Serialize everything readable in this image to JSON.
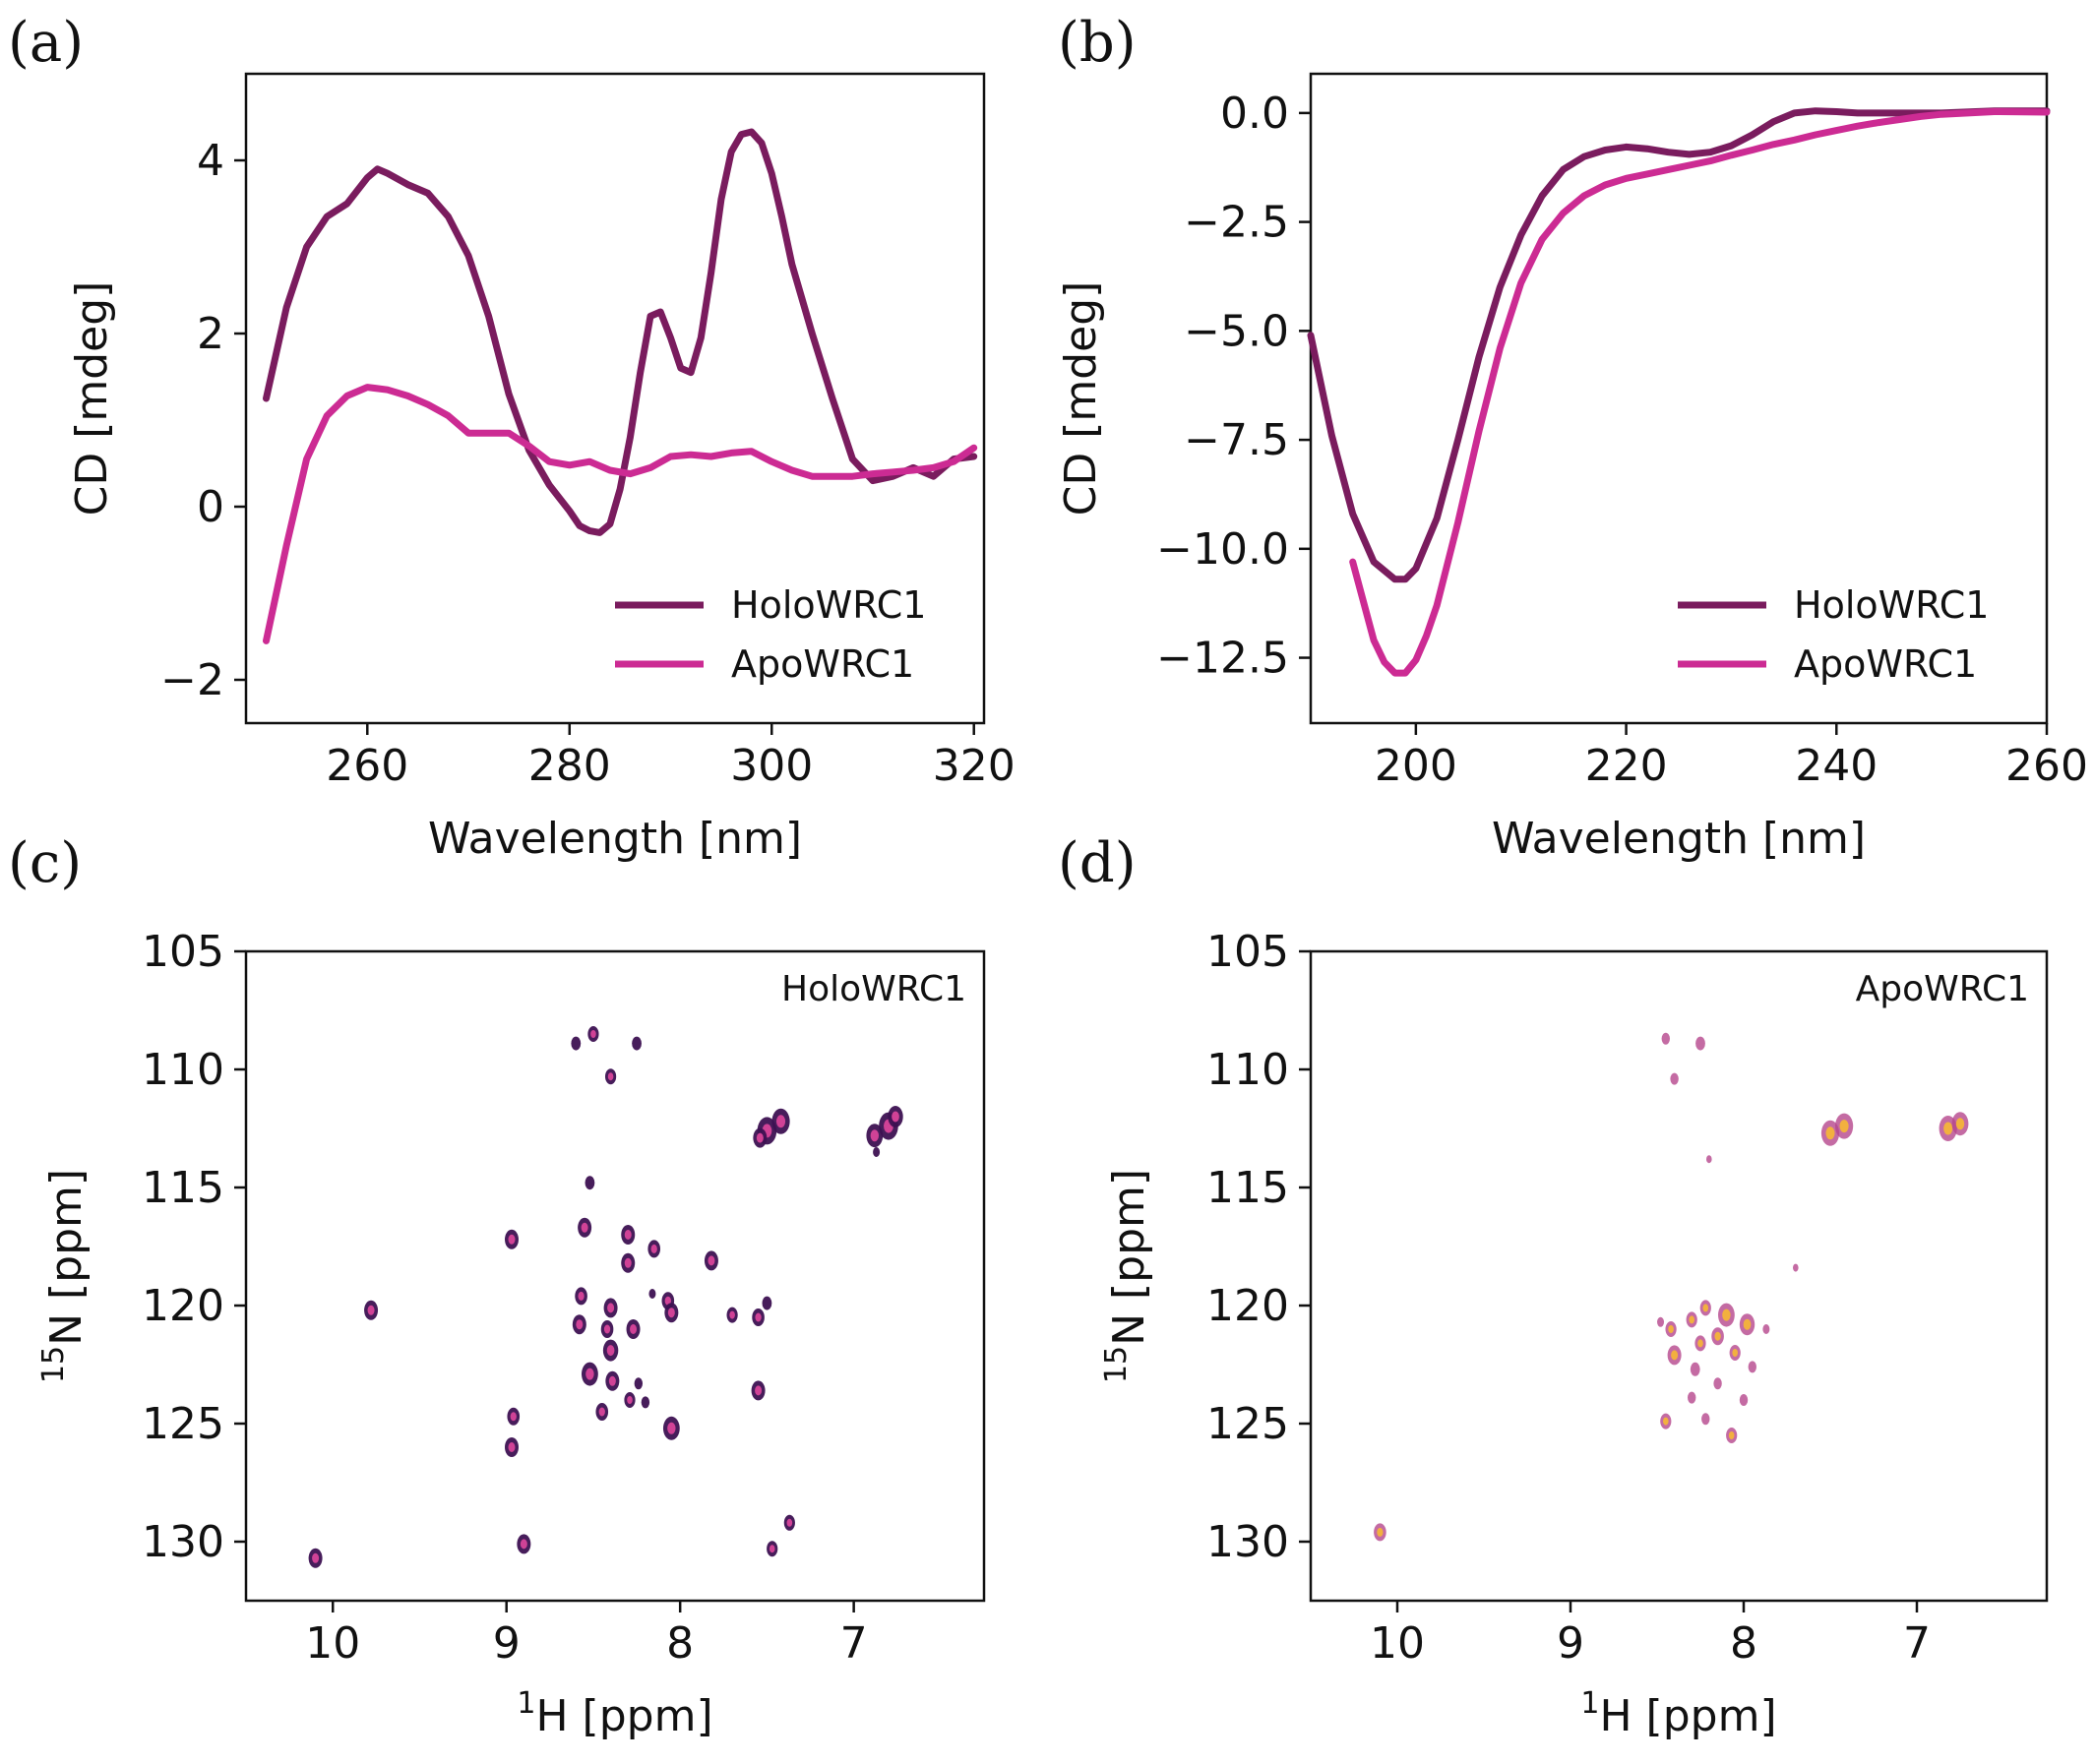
{
  "colors": {
    "holo": "#7a1c5e",
    "apo": "#cc2b93",
    "peak_edge_holo": "#3d1152",
    "peak_edge_apo": "#b5468c",
    "peak_core_holo": "#d8449a",
    "peak_core_apo": "#f4b43a"
  },
  "chart_data": [
    {
      "panel": "(a)",
      "type": "line",
      "xlabel": "Wavelength [nm]",
      "ylabel": "CD [mdeg]",
      "xlim": [
        248,
        321
      ],
      "ylim": [
        -2.5,
        5.0
      ],
      "xticks": [
        260,
        280,
        300,
        320
      ],
      "yticks": [
        -2,
        0,
        2,
        4
      ],
      "xtick_labels": [
        "260",
        "280",
        "300",
        "320"
      ],
      "ytick_labels": [
        "−2",
        "0",
        "2",
        "4"
      ],
      "legend": "lower-right",
      "series": [
        {
          "name": "HoloWRC1",
          "x": [
            250,
            252,
            254,
            256,
            258,
            260,
            261,
            262,
            264,
            266,
            268,
            270,
            272,
            274,
            276,
            278,
            280,
            281,
            282,
            283,
            284,
            285,
            286,
            287,
            288,
            289,
            290,
            291,
            292,
            293,
            294,
            295,
            296,
            297,
            298,
            299,
            300,
            301,
            302,
            304,
            306,
            308,
            310,
            312,
            314,
            316,
            318,
            320
          ],
          "y": [
            1.25,
            2.3,
            3.0,
            3.35,
            3.5,
            3.8,
            3.9,
            3.85,
            3.72,
            3.62,
            3.35,
            2.9,
            2.2,
            1.3,
            0.65,
            0.25,
            -0.05,
            -0.22,
            -0.28,
            -0.3,
            -0.2,
            0.2,
            0.8,
            1.55,
            2.2,
            2.25,
            1.95,
            1.6,
            1.55,
            1.95,
            2.7,
            3.55,
            4.1,
            4.3,
            4.33,
            4.2,
            3.85,
            3.35,
            2.8,
            2.0,
            1.25,
            0.55,
            0.3,
            0.35,
            0.45,
            0.35,
            0.55,
            0.58
          ]
        },
        {
          "name": "ApoWRC1",
          "x": [
            250,
            252,
            254,
            256,
            258,
            260,
            262,
            264,
            266,
            268,
            270,
            272,
            274,
            276,
            278,
            280,
            282,
            284,
            286,
            288,
            290,
            292,
            294,
            296,
            298,
            300,
            302,
            304,
            306,
            308,
            310,
            312,
            314,
            316,
            318,
            320
          ],
          "y": [
            -1.55,
            -0.45,
            0.55,
            1.05,
            1.28,
            1.38,
            1.35,
            1.28,
            1.18,
            1.05,
            0.85,
            0.85,
            0.85,
            0.7,
            0.52,
            0.48,
            0.52,
            0.42,
            0.38,
            0.45,
            0.58,
            0.6,
            0.58,
            0.62,
            0.64,
            0.52,
            0.42,
            0.35,
            0.35,
            0.35,
            0.38,
            0.4,
            0.42,
            0.45,
            0.52,
            0.68
          ]
        }
      ]
    },
    {
      "panel": "(b)",
      "type": "line",
      "xlabel": "Wavelength [nm]",
      "ylabel": "CD [mdeg]",
      "xlim": [
        190,
        260
      ],
      "ylim": [
        -14.0,
        0.9
      ],
      "xticks": [
        200,
        220,
        240,
        260
      ],
      "yticks": [
        0.0,
        -2.5,
        -5.0,
        -7.5,
        -10.0,
        -12.5
      ],
      "xtick_labels": [
        "200",
        "220",
        "240",
        "260"
      ],
      "ytick_labels": [
        "0.0",
        "−2.5",
        "−5.0",
        "−7.5",
        "−10.0",
        "−12.5"
      ],
      "legend": "lower-right",
      "series": [
        {
          "name": "HoloWRC1",
          "x": [
            190,
            192,
            194,
            196,
            198,
            199,
            200,
            202,
            204,
            206,
            208,
            210,
            212,
            214,
            216,
            218,
            220,
            222,
            224,
            226,
            228,
            230,
            232,
            234,
            236,
            238,
            240,
            242,
            245,
            250,
            255,
            260
          ],
          "y": [
            -5.1,
            -7.4,
            -9.2,
            -10.3,
            -10.7,
            -10.7,
            -10.45,
            -9.3,
            -7.5,
            -5.6,
            -4.0,
            -2.8,
            -1.9,
            -1.3,
            -1.0,
            -0.85,
            -0.78,
            -0.82,
            -0.9,
            -0.95,
            -0.9,
            -0.75,
            -0.5,
            -0.2,
            0.0,
            0.05,
            0.03,
            0.0,
            0.0,
            0.0,
            0.05,
            0.05
          ]
        },
        {
          "name": "ApoWRC1",
          "x": [
            194,
            196,
            197,
            198,
            199,
            200,
            201,
            202,
            204,
            206,
            208,
            210,
            212,
            214,
            216,
            218,
            220,
            222,
            224,
            226,
            228,
            230,
            232,
            234,
            236,
            238,
            240,
            242,
            244,
            246,
            248,
            250,
            255,
            260
          ],
          "y": [
            -10.3,
            -12.1,
            -12.6,
            -12.85,
            -12.85,
            -12.55,
            -12.0,
            -11.3,
            -9.4,
            -7.3,
            -5.4,
            -3.9,
            -2.9,
            -2.3,
            -1.9,
            -1.65,
            -1.5,
            -1.4,
            -1.3,
            -1.2,
            -1.1,
            -0.97,
            -0.85,
            -0.72,
            -0.62,
            -0.5,
            -0.4,
            -0.3,
            -0.22,
            -0.15,
            -0.08,
            -0.03,
            0.03,
            0.02
          ]
        }
      ]
    },
    {
      "panel": "(c)",
      "type": "scatter",
      "label": "HoloWRC1",
      "xlabel_sup": "1",
      "xlabel_main": "H [ppm]",
      "ylabel_sup": "15",
      "ylabel_main": "N [ppm]",
      "xlim": [
        10.5,
        6.25
      ],
      "ylim": [
        132.5,
        105
      ],
      "xticks": [
        10,
        9,
        8,
        7
      ],
      "yticks": [
        105,
        110,
        115,
        120,
        125,
        130
      ],
      "xtick_labels": [
        "10",
        "9",
        "8",
        "7"
      ],
      "ytick_labels": [
        "105",
        "110",
        "115",
        "120",
        "125",
        "130"
      ],
      "peaks": [
        {
          "x": 10.1,
          "y": 130.7,
          "s": 1.0
        },
        {
          "x": 9.78,
          "y": 120.2,
          "s": 1.0
        },
        {
          "x": 8.97,
          "y": 117.2,
          "s": 1.0
        },
        {
          "x": 8.96,
          "y": 124.7,
          "s": 0.9
        },
        {
          "x": 8.97,
          "y": 126.0,
          "s": 1.0
        },
        {
          "x": 8.9,
          "y": 130.1,
          "s": 1.0
        },
        {
          "x": 8.6,
          "y": 108.9,
          "s": 0.7
        },
        {
          "x": 8.5,
          "y": 108.5,
          "s": 0.8
        },
        {
          "x": 8.4,
          "y": 110.3,
          "s": 0.8
        },
        {
          "x": 8.25,
          "y": 108.9,
          "s": 0.7
        },
        {
          "x": 8.52,
          "y": 114.8,
          "s": 0.7
        },
        {
          "x": 8.55,
          "y": 116.7,
          "s": 1.0
        },
        {
          "x": 8.3,
          "y": 117.0,
          "s": 1.0
        },
        {
          "x": 8.3,
          "y": 118.2,
          "s": 1.0
        },
        {
          "x": 8.15,
          "y": 117.6,
          "s": 0.9
        },
        {
          "x": 7.82,
          "y": 118.1,
          "s": 1.0
        },
        {
          "x": 8.57,
          "y": 119.6,
          "s": 0.9
        },
        {
          "x": 8.4,
          "y": 120.1,
          "s": 1.0
        },
        {
          "x": 8.07,
          "y": 119.8,
          "s": 0.9
        },
        {
          "x": 8.58,
          "y": 120.8,
          "s": 1.0
        },
        {
          "x": 8.42,
          "y": 121.0,
          "s": 0.9
        },
        {
          "x": 8.27,
          "y": 121.0,
          "s": 1.0
        },
        {
          "x": 8.05,
          "y": 120.3,
          "s": 1.0
        },
        {
          "x": 8.16,
          "y": 119.5,
          "s": 0.5
        },
        {
          "x": 8.4,
          "y": 121.9,
          "s": 1.1
        },
        {
          "x": 8.52,
          "y": 122.9,
          "s": 1.2
        },
        {
          "x": 8.39,
          "y": 123.2,
          "s": 1.0
        },
        {
          "x": 8.24,
          "y": 123.3,
          "s": 0.6
        },
        {
          "x": 8.29,
          "y": 124.0,
          "s": 0.8
        },
        {
          "x": 8.45,
          "y": 124.5,
          "s": 0.9
        },
        {
          "x": 8.05,
          "y": 125.2,
          "s": 1.2
        },
        {
          "x": 8.2,
          "y": 124.1,
          "s": 0.6
        },
        {
          "x": 7.7,
          "y": 120.4,
          "s": 0.8
        },
        {
          "x": 7.55,
          "y": 120.5,
          "s": 0.9
        },
        {
          "x": 7.5,
          "y": 119.9,
          "s": 0.7
        },
        {
          "x": 7.55,
          "y": 123.6,
          "s": 1.0
        },
        {
          "x": 7.47,
          "y": 130.3,
          "s": 0.8
        },
        {
          "x": 7.37,
          "y": 129.2,
          "s": 0.8
        },
        {
          "x": 7.5,
          "y": 112.6,
          "s": 1.4
        },
        {
          "x": 7.42,
          "y": 112.2,
          "s": 1.3
        },
        {
          "x": 7.54,
          "y": 112.9,
          "s": 1.0
        },
        {
          "x": 6.8,
          "y": 112.4,
          "s": 1.4
        },
        {
          "x": 6.88,
          "y": 112.8,
          "s": 1.2
        },
        {
          "x": 6.76,
          "y": 112.0,
          "s": 1.1
        },
        {
          "x": 6.87,
          "y": 113.5,
          "s": 0.5
        }
      ]
    },
    {
      "panel": "(d)",
      "type": "scatter",
      "label": "ApoWRC1",
      "xlabel_sup": "1",
      "xlabel_main": "H [ppm]",
      "ylabel_sup": "15",
      "ylabel_main": "N [ppm]",
      "xlim": [
        10.5,
        6.25
      ],
      "ylim": [
        132.5,
        105
      ],
      "xticks": [
        10,
        9,
        8,
        7
      ],
      "yticks": [
        105,
        110,
        115,
        120,
        125,
        130
      ],
      "xtick_labels": [
        "10",
        "9",
        "8",
        "7"
      ],
      "ytick_labels": [
        "105",
        "110",
        "115",
        "120",
        "125",
        "130"
      ],
      "peaks": [
        {
          "x": 10.1,
          "y": 129.6,
          "s": 0.9
        },
        {
          "x": 8.45,
          "y": 108.7,
          "s": 0.6
        },
        {
          "x": 8.25,
          "y": 108.9,
          "s": 0.7
        },
        {
          "x": 8.4,
          "y": 110.4,
          "s": 0.6
        },
        {
          "x": 8.2,
          "y": 113.8,
          "s": 0.4
        },
        {
          "x": 7.7,
          "y": 118.4,
          "s": 0.4
        },
        {
          "x": 8.22,
          "y": 120.1,
          "s": 0.8
        },
        {
          "x": 8.1,
          "y": 120.4,
          "s": 1.2
        },
        {
          "x": 7.98,
          "y": 120.8,
          "s": 1.1
        },
        {
          "x": 8.3,
          "y": 120.6,
          "s": 0.8
        },
        {
          "x": 8.42,
          "y": 121.0,
          "s": 0.8
        },
        {
          "x": 8.15,
          "y": 121.3,
          "s": 0.9
        },
        {
          "x": 8.25,
          "y": 121.6,
          "s": 0.8
        },
        {
          "x": 8.4,
          "y": 122.1,
          "s": 1.0
        },
        {
          "x": 8.05,
          "y": 122.0,
          "s": 0.8
        },
        {
          "x": 8.28,
          "y": 122.7,
          "s": 0.7
        },
        {
          "x": 7.95,
          "y": 122.6,
          "s": 0.6
        },
        {
          "x": 8.15,
          "y": 123.3,
          "s": 0.6
        },
        {
          "x": 8.3,
          "y": 123.9,
          "s": 0.6
        },
        {
          "x": 8.0,
          "y": 124.0,
          "s": 0.6
        },
        {
          "x": 8.45,
          "y": 124.9,
          "s": 0.8
        },
        {
          "x": 8.22,
          "y": 124.8,
          "s": 0.6
        },
        {
          "x": 8.07,
          "y": 125.5,
          "s": 0.8
        },
        {
          "x": 7.87,
          "y": 121.0,
          "s": 0.5
        },
        {
          "x": 8.48,
          "y": 120.7,
          "s": 0.5
        },
        {
          "x": 7.5,
          "y": 112.7,
          "s": 1.3
        },
        {
          "x": 7.42,
          "y": 112.4,
          "s": 1.3
        },
        {
          "x": 6.82,
          "y": 112.5,
          "s": 1.3
        },
        {
          "x": 6.75,
          "y": 112.3,
          "s": 1.2
        }
      ]
    }
  ]
}
